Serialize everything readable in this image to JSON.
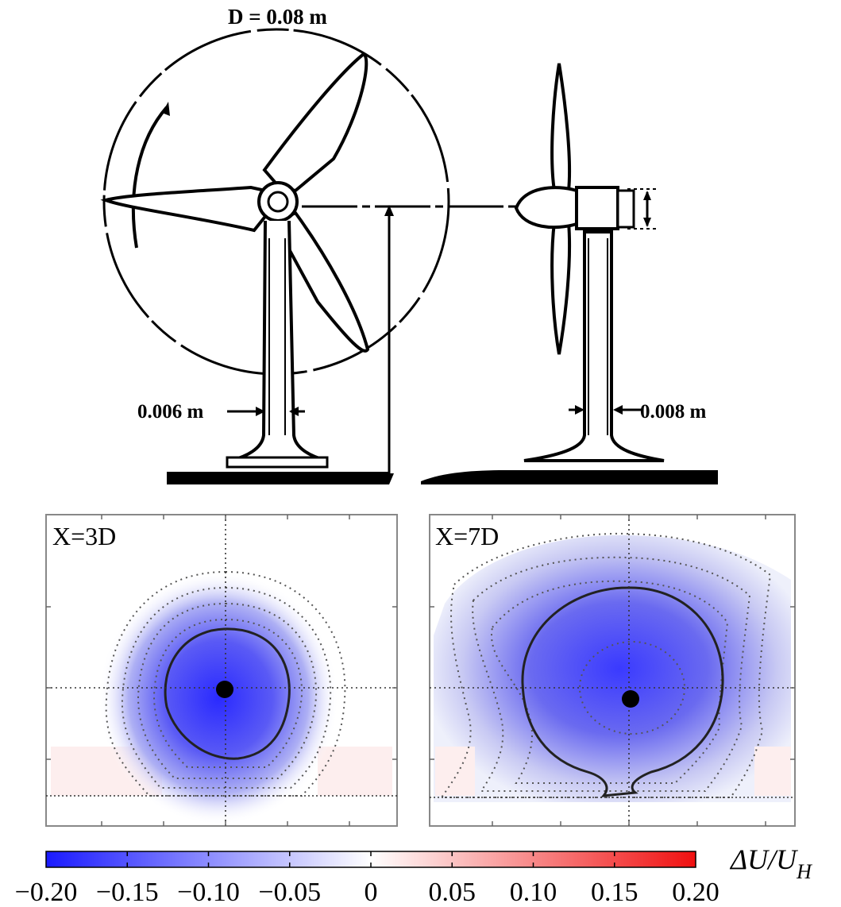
{
  "diagram": {
    "rotor_diameter_label": "D = 0.08 m",
    "tower_width_front_label": "0.006 m",
    "tower_width_side_label": "0.008 m"
  },
  "panels": [
    {
      "label": "X=3D"
    },
    {
      "label": "X=7D"
    }
  ],
  "colorbar": {
    "label": "ΔU/U",
    "label_subscript": "H",
    "ticks": [
      "−0.20",
      "−0.15",
      "−0.10",
      "−0.05",
      "0",
      "0.05",
      "0.10",
      "0.15",
      "0.20"
    ],
    "colors": {
      "min": "#1a1aff",
      "mid": "#ffffff",
      "max": "#f01010"
    }
  }
}
